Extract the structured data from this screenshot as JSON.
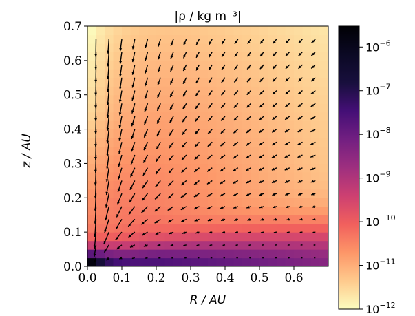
{
  "chart_data": {
    "type": "heatmap",
    "title": "|ρ / kg m⁻³|",
    "xlabel": "R / AU",
    "ylabel": "z / AU",
    "xlim": [
      0.0,
      0.7
    ],
    "ylim": [
      0.0,
      0.7
    ],
    "x_ticks": [
      "0.0",
      "0.1",
      "0.2",
      "0.3",
      "0.4",
      "0.5",
      "0.6"
    ],
    "y_ticks": [
      "0.0",
      "0.1",
      "0.2",
      "0.3",
      "0.4",
      "0.5",
      "0.6",
      "0.7"
    ],
    "colormap": "magma_r",
    "color_scale": "log",
    "color_range": [
      1e-12,
      3e-06
    ],
    "colorbar_ticks": [
      {
        "base": "10",
        "exp": "−6"
      },
      {
        "base": "10",
        "exp": "−7"
      },
      {
        "base": "10",
        "exp": "−8"
      },
      {
        "base": "10",
        "exp": "−9"
      },
      {
        "base": "10",
        "exp": "−10"
      },
      {
        "base": "10",
        "exp": "−11"
      },
      {
        "base": "10",
        "exp": "−12"
      }
    ],
    "overlay": "velocity quiver field",
    "grid": false
  }
}
